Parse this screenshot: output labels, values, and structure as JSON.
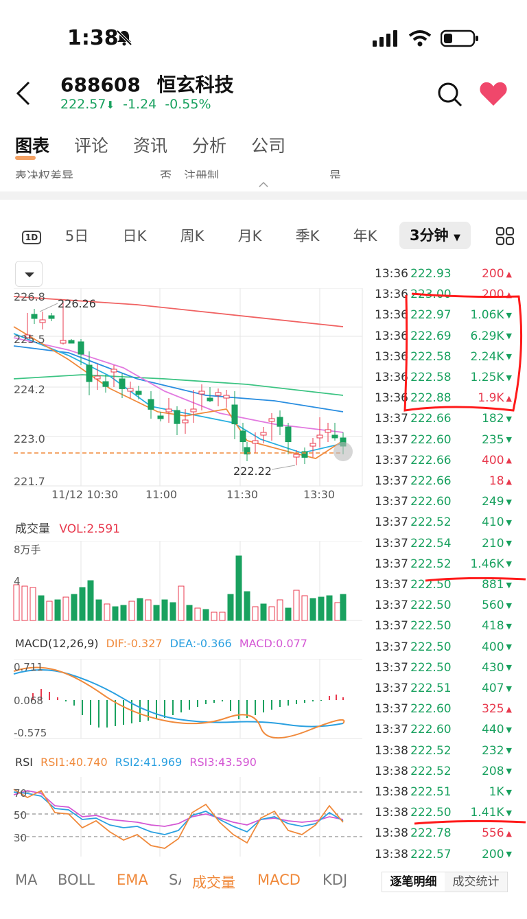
{
  "status": {
    "time": "1:38"
  },
  "header": {
    "code": "688608",
    "name": "恒玄科技",
    "price": "222.57",
    "change": "-1.24",
    "change_pct": "-0.55%"
  },
  "tabs": [
    "图表",
    "评论",
    "资讯",
    "分析",
    "公司"
  ],
  "ghost_text": {
    "a": "表决权差异",
    "b": "否",
    "c": "注册制",
    "d": "是"
  },
  "periods": [
    "1D",
    "5日",
    "日K",
    "周K",
    "月K",
    "季K",
    "年K",
    "3分钟"
  ],
  "chart": {
    "price_labels": [
      "226.8",
      "225.5",
      "224.2",
      "223.0",
      "221.7"
    ],
    "high_label": "226.26",
    "low_label": "222.22",
    "time_labels": [
      "11/12 10:30",
      "11:00",
      "11:30",
      "13:30"
    ]
  },
  "volume": {
    "title": "成交量",
    "vol_label": "VOL:2.591",
    "unit_label": "8万手",
    "mid_label": "4"
  },
  "macd": {
    "title": "MACD(12,26,9)",
    "dif": "DIF:-0.327",
    "dea": "DEA:-0.366",
    "macd": "MACD:0.077",
    "top": "0.711",
    "mid": "0.068",
    "bottom": "-0.575"
  },
  "rsi": {
    "title": "RSI",
    "rsi1": "RSI1:40.740",
    "rsi2": "RSI2:41.969",
    "rsi3": "RSI3:43.590",
    "levels": [
      "70",
      "50",
      "30"
    ]
  },
  "ticks": [
    {
      "t": "13:36",
      "p": "222.93",
      "v": "200",
      "d": "up"
    },
    {
      "t": "13:36",
      "p": "223.00",
      "v": "200",
      "d": "up"
    },
    {
      "t": "13:36",
      "p": "222.97",
      "v": "1.06K",
      "d": "down"
    },
    {
      "t": "13:36",
      "p": "222.69",
      "v": "6.29K",
      "d": "down"
    },
    {
      "t": "13:36",
      "p": "222.58",
      "v": "2.24K",
      "d": "down"
    },
    {
      "t": "13:36",
      "p": "222.58",
      "v": "1.25K",
      "d": "down"
    },
    {
      "t": "13:36",
      "p": "222.88",
      "v": "1.9K",
      "d": "up"
    },
    {
      "t": "13:37",
      "p": "222.66",
      "v": "182",
      "d": "down"
    },
    {
      "t": "13:37",
      "p": "222.60",
      "v": "235",
      "d": "down"
    },
    {
      "t": "13:37",
      "p": "222.66",
      "v": "400",
      "d": "up"
    },
    {
      "t": "13:37",
      "p": "222.66",
      "v": "18",
      "d": "up"
    },
    {
      "t": "13:37",
      "p": "222.60",
      "v": "249",
      "d": "down"
    },
    {
      "t": "13:37",
      "p": "222.52",
      "v": "410",
      "d": "down"
    },
    {
      "t": "13:37",
      "p": "222.54",
      "v": "210",
      "d": "down"
    },
    {
      "t": "13:37",
      "p": "222.52",
      "v": "1.46K",
      "d": "down"
    },
    {
      "t": "13:37",
      "p": "222.50",
      "v": "881",
      "d": "down"
    },
    {
      "t": "13:37",
      "p": "222.50",
      "v": "560",
      "d": "down"
    },
    {
      "t": "13:37",
      "p": "222.50",
      "v": "418",
      "d": "down"
    },
    {
      "t": "13:37",
      "p": "222.50",
      "v": "400",
      "d": "down"
    },
    {
      "t": "13:37",
      "p": "222.50",
      "v": "430",
      "d": "down"
    },
    {
      "t": "13:37",
      "p": "222.51",
      "v": "407",
      "d": "down"
    },
    {
      "t": "13:37",
      "p": "222.60",
      "v": "325",
      "d": "up"
    },
    {
      "t": "13:37",
      "p": "222.60",
      "v": "440",
      "d": "down"
    },
    {
      "t": "13:38",
      "p": "222.52",
      "v": "232",
      "d": "down"
    },
    {
      "t": "13:38",
      "p": "222.52",
      "v": "208",
      "d": "down"
    },
    {
      "t": "13:38",
      "p": "222.51",
      "v": "1K",
      "d": "down"
    },
    {
      "t": "13:38",
      "p": "222.50",
      "v": "1.41K",
      "d": "down"
    },
    {
      "t": "13:38",
      "p": "222.78",
      "v": "556",
      "d": "up"
    },
    {
      "t": "13:38",
      "p": "222.57",
      "v": "200",
      "d": "down"
    }
  ],
  "bottom_indicators": [
    "MA",
    "BOLL",
    "EMA",
    "SAR",
    "成交量",
    "MACD",
    "KDJ"
  ],
  "detail_tabs": [
    "逐笔明细",
    "成交统计"
  ],
  "colors": {
    "up": "#e8394d",
    "down": "#19a15f",
    "accent": "#f08a3c"
  }
}
